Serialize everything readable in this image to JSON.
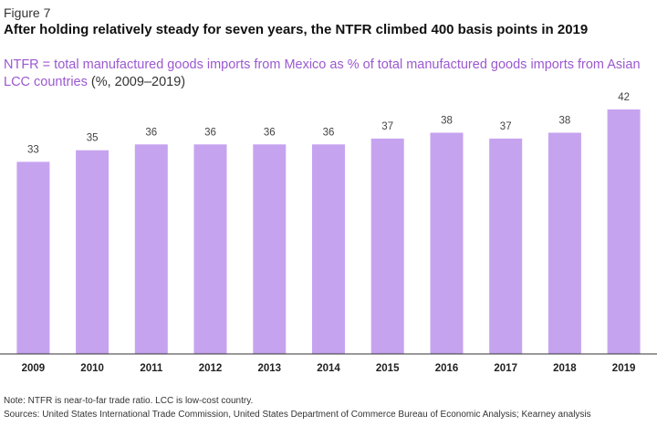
{
  "figure_label": "Figure 7",
  "headline": "After holding relatively steady for seven years, the NTFR climbed 400 basis points in 2019",
  "subtitle_accent": "NTFR = total manufactured goods imports from Mexico as % of total manufactured goods imports from Asian LCC countries",
  "subtitle_suffix": " (%, 2009–2019)",
  "note": "Note: NTFR is near-to-far trade ratio. LCC is low-cost country.",
  "sources": "Sources: United States International Trade Commission, United States Department of Commerce Bureau of Economic Analysis; Kearney analysis",
  "colors": {
    "bar": "#c6a3ef",
    "accent": "#9b59d0",
    "axis": "#333333"
  },
  "chart_data": {
    "type": "bar",
    "categories": [
      "2009",
      "2010",
      "2011",
      "2012",
      "2013",
      "2014",
      "2015",
      "2016",
      "2017",
      "2018",
      "2019"
    ],
    "values": [
      33,
      35,
      36,
      36,
      36,
      36,
      37,
      38,
      37,
      38,
      42
    ],
    "title": "NTFR = total manufactured goods imports from Mexico as % of total manufactured goods imports from Asian LCC countries",
    "xlabel": "",
    "ylabel": "%",
    "ylim": [
      0,
      42
    ]
  }
}
